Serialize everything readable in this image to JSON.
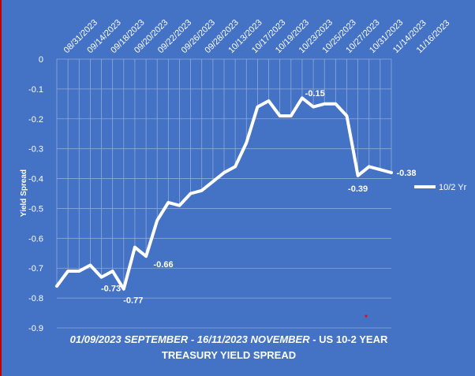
{
  "chart_data": {
    "type": "line",
    "title_line1_italic": "01/09/2023 SEPTEMBER - 16/11/2023 NOVEMBER",
    "title_line1_rest": " - US 10-2 YEAR",
    "title_line2": "TREASURY YIELD SPREAD",
    "ylabel": "Yield Spread",
    "xlabel": "",
    "ylim": [
      -0.9,
      0
    ],
    "y_ticks": [
      "0",
      "-0.1",
      "-0.2",
      "-0.3",
      "-0.4",
      "-0.5",
      "-0.6",
      "-0.7",
      "-0.8",
      "-0.9"
    ],
    "x_tick_labels": [
      "08/31/2023",
      "09/14/2023",
      "09/18/2023",
      "09/20/2023",
      "09/22/2023",
      "09/26/2023",
      "09/28/2023",
      "10/13/2023",
      "10/17/2023",
      "10/19/2023",
      "10/23/2023",
      "10/25/2023",
      "10/27/2023",
      "10/31/2023",
      "11/14/2023",
      "11/16/2023"
    ],
    "legend_position": "right",
    "grid": true,
    "colors": {
      "background": "#4472c4",
      "line": "#ffffff",
      "text": "#ffffff",
      "gridline": "#8ea9db"
    },
    "series": [
      {
        "name": "10/2 Yr",
        "values": [
          -0.76,
          -0.71,
          -0.71,
          -0.69,
          -0.73,
          -0.71,
          -0.77,
          -0.63,
          -0.66,
          -0.54,
          -0.48,
          -0.49,
          -0.45,
          -0.44,
          -0.41,
          -0.38,
          -0.36,
          -0.28,
          -0.16,
          -0.14,
          -0.19,
          -0.19,
          -0.13,
          -0.16,
          -0.15,
          -0.15,
          -0.19,
          -0.39,
          -0.36,
          -0.37,
          -0.38
        ]
      }
    ],
    "data_labels": [
      {
        "index": 4,
        "text": "-0.73"
      },
      {
        "index": 6,
        "text": "-0.77"
      },
      {
        "index": 8,
        "text": "-0.66"
      },
      {
        "index": 24,
        "text": "-0.15"
      },
      {
        "index": 27,
        "text": "-0.39"
      },
      {
        "index": 30,
        "text": "-0.38"
      }
    ]
  }
}
